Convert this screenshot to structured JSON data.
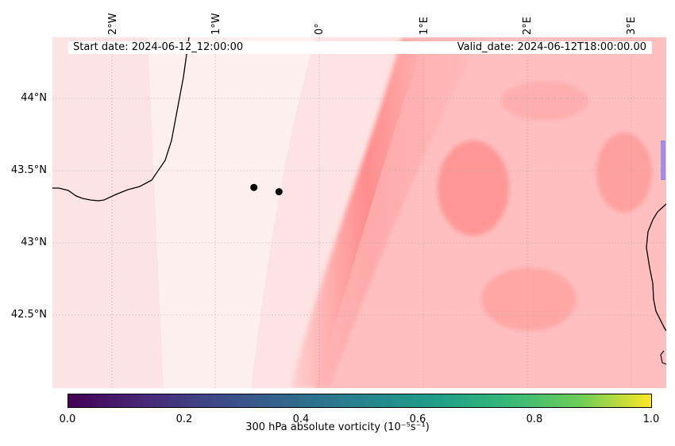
{
  "info": {
    "start_date": "Start date: 2024-06-12_12:00:00",
    "valid_date": "Valid_date: 2024-06-12T18:00:00.00"
  },
  "map": {
    "lon_ticks": [
      "2°W",
      "1°W",
      "0°",
      "1°E",
      "2°E",
      "3°E"
    ],
    "lat_ticks": [
      "44°N",
      "43.5°N",
      "43°N",
      "42.5°N"
    ],
    "extent": {
      "lon_min": -2.58,
      "lon_max": 3.3,
      "lat_min": 42.0,
      "lat_max": 44.43
    },
    "gridlines": true,
    "points": [
      {
        "lon": -0.65,
        "lat": 43.39
      },
      {
        "lon": -0.41,
        "lat": 43.36
      }
    ]
  },
  "colorbar": {
    "ticks": [
      "0.0",
      "0.2",
      "0.4",
      "0.6",
      "0.8",
      "1.0"
    ],
    "label": "300 hPa absolute vorticity (10⁻⁵s⁻¹)",
    "colormap": "viridis",
    "range": [
      0.0,
      1.0
    ]
  },
  "colors": {
    "field_low": "#fde8e8",
    "field_high": "#ff5a5a",
    "coast": "#000000",
    "point": "#000000"
  }
}
